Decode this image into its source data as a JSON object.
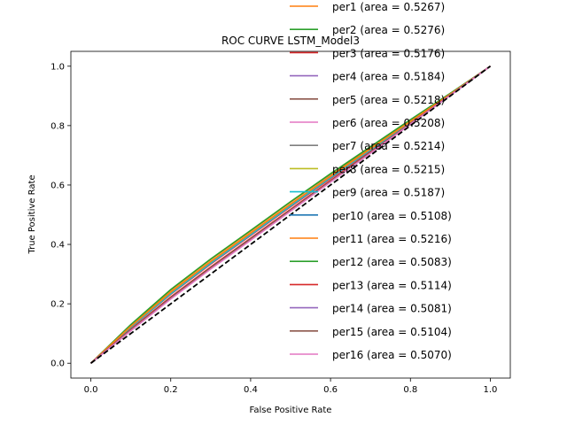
{
  "chart_data": {
    "type": "line",
    "title": "ROC CURVE LSTM_Model3",
    "xlabel": "False Positive Rate",
    "ylabel": "True Positive Rate",
    "xlim": [
      -0.05,
      1.05
    ],
    "ylim": [
      -0.05,
      1.05
    ],
    "xticks": [
      "0.0",
      "0.2",
      "0.4",
      "0.6",
      "0.8",
      "1.0"
    ],
    "yticks": [
      "0.0",
      "0.2",
      "0.4",
      "0.6",
      "0.8",
      "1.0"
    ],
    "grid": false,
    "legend_position": "upper-right",
    "reference_line": {
      "x": [
        0,
        1
      ],
      "y": [
        0,
        1
      ],
      "color": "#000000",
      "style": "dashed"
    },
    "series": [
      {
        "name": "per1 (area = 0.5267)",
        "color": "#ff7f0e",
        "x": [
          0,
          0.1,
          0.2,
          0.3,
          0.4,
          0.5,
          0.6,
          0.7,
          0.8,
          0.9,
          1.0
        ],
        "y": [
          0,
          0.128,
          0.246,
          0.349,
          0.445,
          0.542,
          0.636,
          0.727,
          0.818,
          0.908,
          1.0
        ]
      },
      {
        "name": "per2 (area = 0.5276)",
        "color": "#2ca02c",
        "x": [
          0,
          0.1,
          0.2,
          0.3,
          0.4,
          0.5,
          0.6,
          0.7,
          0.8,
          0.9,
          1.0
        ],
        "y": [
          0,
          0.13,
          0.248,
          0.351,
          0.447,
          0.544,
          0.638,
          0.729,
          0.82,
          0.909,
          1.0
        ]
      },
      {
        "name": "per3 (area = 0.5176)",
        "color": "#d62728",
        "x": [
          0,
          0.1,
          0.2,
          0.3,
          0.4,
          0.5,
          0.6,
          0.7,
          0.8,
          0.9,
          1.0
        ],
        "y": [
          0,
          0.12,
          0.232,
          0.334,
          0.43,
          0.527,
          0.622,
          0.716,
          0.81,
          0.904,
          1.0
        ]
      },
      {
        "name": "per4 (area = 0.5184)",
        "color": "#9467bd",
        "x": [
          0,
          0.1,
          0.2,
          0.3,
          0.4,
          0.5,
          0.6,
          0.7,
          0.8,
          0.9,
          1.0
        ],
        "y": [
          0,
          0.121,
          0.234,
          0.336,
          0.432,
          0.529,
          0.624,
          0.718,
          0.811,
          0.905,
          1.0
        ]
      },
      {
        "name": "per5 (area = 0.5218)",
        "color": "#8c564b",
        "x": [
          0,
          0.1,
          0.2,
          0.3,
          0.4,
          0.5,
          0.6,
          0.7,
          0.8,
          0.9,
          1.0
        ],
        "y": [
          0,
          0.124,
          0.239,
          0.342,
          0.438,
          0.535,
          0.63,
          0.722,
          0.814,
          0.906,
          1.0
        ]
      },
      {
        "name": "per6 (area = 0.5208)",
        "color": "#e377c2",
        "x": [
          0,
          0.1,
          0.2,
          0.3,
          0.4,
          0.5,
          0.6,
          0.7,
          0.8,
          0.9,
          1.0
        ],
        "y": [
          0,
          0.123,
          0.237,
          0.34,
          0.436,
          0.533,
          0.628,
          0.721,
          0.813,
          0.906,
          1.0
        ]
      },
      {
        "name": "per7 (area = 0.5214)",
        "color": "#7f7f7f",
        "x": [
          0,
          0.1,
          0.2,
          0.3,
          0.4,
          0.5,
          0.6,
          0.7,
          0.8,
          0.9,
          1.0
        ],
        "y": [
          0,
          0.124,
          0.238,
          0.341,
          0.437,
          0.534,
          0.629,
          0.722,
          0.814,
          0.906,
          1.0
        ]
      },
      {
        "name": "per8 (area = 0.5215)",
        "color": "#bcbd22",
        "x": [
          0,
          0.1,
          0.2,
          0.3,
          0.4,
          0.5,
          0.6,
          0.7,
          0.8,
          0.9,
          1.0
        ],
        "y": [
          0,
          0.124,
          0.239,
          0.342,
          0.438,
          0.535,
          0.629,
          0.722,
          0.814,
          0.906,
          1.0
        ]
      },
      {
        "name": "per9 (area = 0.5187)",
        "color": "#17becf",
        "x": [
          0,
          0.1,
          0.2,
          0.3,
          0.4,
          0.5,
          0.6,
          0.7,
          0.8,
          0.9,
          1.0
        ],
        "y": [
          0,
          0.121,
          0.234,
          0.337,
          0.433,
          0.53,
          0.625,
          0.718,
          0.811,
          0.905,
          1.0
        ]
      },
      {
        "name": "per10 (area = 0.5108)",
        "color": "#1f77b4",
        "x": [
          0,
          0.1,
          0.2,
          0.3,
          0.4,
          0.5,
          0.6,
          0.7,
          0.8,
          0.9,
          1.0
        ],
        "y": [
          0,
          0.113,
          0.222,
          0.323,
          0.42,
          0.517,
          0.614,
          0.71,
          0.806,
          0.903,
          1.0
        ]
      },
      {
        "name": "per11 (area = 0.5216)",
        "color": "#ff7f0e",
        "x": [
          0,
          0.1,
          0.2,
          0.3,
          0.4,
          0.5,
          0.6,
          0.7,
          0.8,
          0.9,
          1.0
        ],
        "y": [
          0,
          0.124,
          0.239,
          0.342,
          0.438,
          0.535,
          0.629,
          0.722,
          0.814,
          0.906,
          1.0
        ]
      },
      {
        "name": "per12 (area = 0.5083)",
        "color": "#2ca02c",
        "x": [
          0,
          0.1,
          0.2,
          0.3,
          0.4,
          0.5,
          0.6,
          0.7,
          0.8,
          0.9,
          1.0
        ],
        "y": [
          0,
          0.11,
          0.218,
          0.319,
          0.416,
          0.513,
          0.611,
          0.708,
          0.805,
          0.902,
          1.0
        ]
      },
      {
        "name": "per13 (area = 0.5114)",
        "color": "#d62728",
        "x": [
          0,
          0.1,
          0.2,
          0.3,
          0.4,
          0.5,
          0.6,
          0.7,
          0.8,
          0.9,
          1.0
        ],
        "y": [
          0,
          0.114,
          0.223,
          0.324,
          0.421,
          0.518,
          0.615,
          0.711,
          0.807,
          0.903,
          1.0
        ]
      },
      {
        "name": "per14 (area = 0.5081)",
        "color": "#9467bd",
        "x": [
          0,
          0.1,
          0.2,
          0.3,
          0.4,
          0.5,
          0.6,
          0.7,
          0.8,
          0.9,
          1.0
        ],
        "y": [
          0,
          0.11,
          0.218,
          0.319,
          0.416,
          0.513,
          0.611,
          0.708,
          0.805,
          0.902,
          1.0
        ]
      },
      {
        "name": "per15 (area = 0.5104)",
        "color": "#8c564b",
        "x": [
          0,
          0.1,
          0.2,
          0.3,
          0.4,
          0.5,
          0.6,
          0.7,
          0.8,
          0.9,
          1.0
        ],
        "y": [
          0,
          0.113,
          0.221,
          0.322,
          0.419,
          0.516,
          0.613,
          0.71,
          0.806,
          0.903,
          1.0
        ]
      },
      {
        "name": "per16 (area = 0.5070)",
        "color": "#e377c2",
        "x": [
          0,
          0.1,
          0.2,
          0.3,
          0.4,
          0.5,
          0.6,
          0.7,
          0.8,
          0.9,
          1.0
        ],
        "y": [
          0,
          0.109,
          0.216,
          0.317,
          0.414,
          0.512,
          0.61,
          0.707,
          0.805,
          0.902,
          1.0
        ]
      }
    ]
  }
}
